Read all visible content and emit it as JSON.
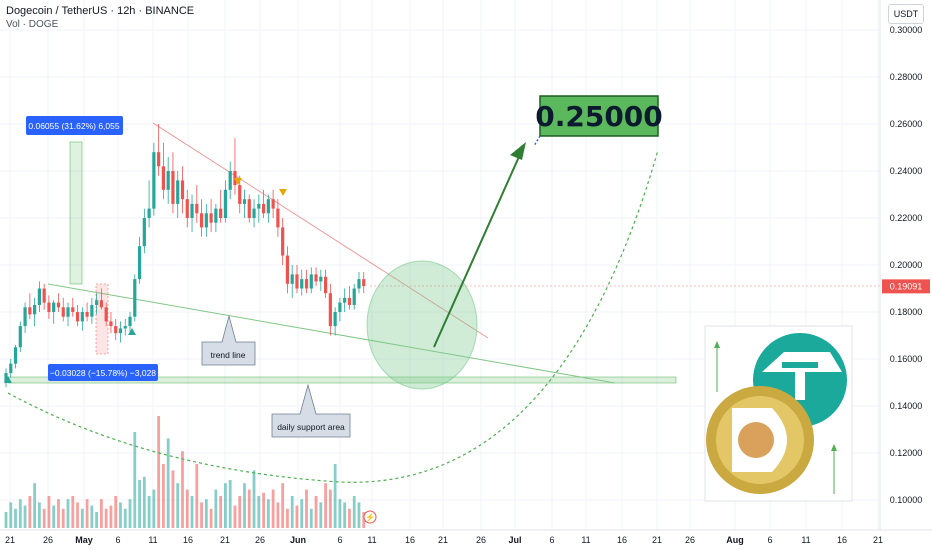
{
  "header": {
    "title": "Dogecoin / TetherUS · 12h · BINANCE",
    "volume_label": "Vol · DOGE",
    "currency": "USDT"
  },
  "chart_data": {
    "type": "candlestick",
    "symbol": "Dogecoin / TetherUS",
    "interval": "12h",
    "exchange": "BINANCE",
    "y_axis": {
      "ticks": [
        "0.30000",
        "0.28000",
        "0.26000",
        "0.24000",
        "0.22000",
        "0.20000",
        "0.18000",
        "0.16000",
        "0.14000",
        "0.12000",
        "0.10000"
      ],
      "range": [
        0.094,
        0.3
      ],
      "last_price_label": "0.19091"
    },
    "x_axis": {
      "ticks": [
        "21",
        "26",
        "May",
        "6",
        "11",
        "16",
        "21",
        "26",
        "Jun",
        "6",
        "11",
        "16",
        "21",
        "26",
        "Jul",
        "6",
        "11",
        "16",
        "21",
        "26",
        "Aug",
        "6",
        "11",
        "16",
        "21"
      ]
    },
    "series": [
      {
        "name": "Dogecoin / TetherUS",
        "ohlc": [
          [
            0.15,
            0.156,
            0.148,
            0.154
          ],
          [
            0.154,
            0.16,
            0.152,
            0.158
          ],
          [
            0.158,
            0.166,
            0.156,
            0.165
          ],
          [
            0.165,
            0.176,
            0.163,
            0.174
          ],
          [
            0.174,
            0.184,
            0.171,
            0.182
          ],
          [
            0.182,
            0.188,
            0.177,
            0.179
          ],
          [
            0.179,
            0.186,
            0.174,
            0.183
          ],
          [
            0.183,
            0.193,
            0.18,
            0.19
          ],
          [
            0.19,
            0.192,
            0.181,
            0.184
          ],
          [
            0.184,
            0.187,
            0.177,
            0.18
          ],
          [
            0.18,
            0.185,
            0.175,
            0.184
          ],
          [
            0.184,
            0.188,
            0.18,
            0.182
          ],
          [
            0.182,
            0.186,
            0.176,
            0.178
          ],
          [
            0.178,
            0.184,
            0.174,
            0.182
          ],
          [
            0.182,
            0.186,
            0.178,
            0.18
          ],
          [
            0.18,
            0.183,
            0.174,
            0.176
          ],
          [
            0.176,
            0.182,
            0.172,
            0.18
          ],
          [
            0.18,
            0.184,
            0.176,
            0.178
          ],
          [
            0.178,
            0.186,
            0.175,
            0.183
          ],
          [
            0.183,
            0.188,
            0.179,
            0.185
          ],
          [
            0.185,
            0.19,
            0.181,
            0.182
          ],
          [
            0.182,
            0.184,
            0.174,
            0.176
          ],
          [
            0.176,
            0.18,
            0.171,
            0.174
          ],
          [
            0.174,
            0.177,
            0.168,
            0.171
          ],
          [
            0.171,
            0.176,
            0.167,
            0.173
          ],
          [
            0.173,
            0.177,
            0.17,
            0.174
          ],
          [
            0.174,
            0.18,
            0.171,
            0.178
          ],
          [
            0.178,
            0.196,
            0.176,
            0.194
          ],
          [
            0.194,
            0.212,
            0.192,
            0.208
          ],
          [
            0.208,
            0.224,
            0.205,
            0.22
          ],
          [
            0.22,
            0.236,
            0.216,
            0.224
          ],
          [
            0.224,
            0.252,
            0.221,
            0.248
          ],
          [
            0.248,
            0.26,
            0.238,
            0.242
          ],
          [
            0.242,
            0.252,
            0.228,
            0.232
          ],
          [
            0.232,
            0.246,
            0.226,
            0.24
          ],
          [
            0.24,
            0.248,
            0.222,
            0.226
          ],
          [
            0.226,
            0.24,
            0.22,
            0.236
          ],
          [
            0.236,
            0.242,
            0.222,
            0.228
          ],
          [
            0.228,
            0.232,
            0.216,
            0.22
          ],
          [
            0.22,
            0.23,
            0.214,
            0.226
          ],
          [
            0.226,
            0.234,
            0.218,
            0.222
          ],
          [
            0.222,
            0.228,
            0.212,
            0.216
          ],
          [
            0.216,
            0.226,
            0.212,
            0.222
          ],
          [
            0.222,
            0.228,
            0.214,
            0.218
          ],
          [
            0.218,
            0.226,
            0.214,
            0.224
          ],
          [
            0.224,
            0.232,
            0.218,
            0.22
          ],
          [
            0.22,
            0.236,
            0.218,
            0.232
          ],
          [
            0.232,
            0.244,
            0.228,
            0.24
          ],
          [
            0.24,
            0.254,
            0.23,
            0.234
          ],
          [
            0.234,
            0.238,
            0.222,
            0.226
          ],
          [
            0.226,
            0.232,
            0.22,
            0.228
          ],
          [
            0.228,
            0.23,
            0.218,
            0.22
          ],
          [
            0.22,
            0.228,
            0.216,
            0.224
          ],
          [
            0.224,
            0.23,
            0.218,
            0.226
          ],
          [
            0.226,
            0.232,
            0.22,
            0.222
          ],
          [
            0.222,
            0.23,
            0.218,
            0.228
          ],
          [
            0.228,
            0.232,
            0.22,
            0.224
          ],
          [
            0.224,
            0.228,
            0.212,
            0.216
          ],
          [
            0.216,
            0.22,
            0.2,
            0.204
          ],
          [
            0.204,
            0.208,
            0.188,
            0.192
          ],
          [
            0.192,
            0.2,
            0.186,
            0.196
          ],
          [
            0.196,
            0.2,
            0.188,
            0.19
          ],
          [
            0.19,
            0.198,
            0.187,
            0.194
          ],
          [
            0.194,
            0.198,
            0.188,
            0.19
          ],
          [
            0.19,
            0.199,
            0.188,
            0.196
          ],
          [
            0.196,
            0.199,
            0.191,
            0.193
          ],
          [
            0.193,
            0.198,
            0.189,
            0.195
          ],
          [
            0.195,
            0.198,
            0.186,
            0.188
          ],
          [
            0.188,
            0.192,
            0.17,
            0.174
          ],
          [
            0.174,
            0.182,
            0.17,
            0.18
          ],
          [
            0.18,
            0.186,
            0.176,
            0.184
          ],
          [
            0.184,
            0.19,
            0.18,
            0.186
          ],
          [
            0.186,
            0.191,
            0.181,
            0.183
          ],
          [
            0.183,
            0.192,
            0.181,
            0.19
          ],
          [
            0.19,
            0.197,
            0.188,
            0.194
          ],
          [
            0.194,
            0.197,
            0.188,
            0.191
          ]
        ]
      }
    ],
    "volume": [
      5,
      8,
      6,
      9,
      7,
      10,
      14,
      8,
      6,
      10,
      7,
      9,
      6,
      9,
      10,
      8,
      6,
      9,
      7,
      5,
      9,
      6,
      7,
      10,
      8,
      6,
      9,
      30,
      15,
      16,
      10,
      12,
      35,
      20,
      28,
      18,
      14,
      24,
      12,
      10,
      20,
      8,
      9,
      6,
      12,
      10,
      14,
      15,
      7,
      10,
      14,
      12,
      18,
      10,
      11,
      9,
      12,
      8,
      14,
      6,
      10,
      7,
      9,
      12,
      6,
      10,
      8,
      14,
      12,
      20,
      9,
      8,
      6,
      10,
      8,
      5
    ],
    "annotations": {
      "target_label": "0.25000",
      "measure_up": "0.06055 (31.62%) 6,055",
      "measure_down": "−0.03028 (−15.78%) −3,028",
      "trend_line_label": "trend line",
      "support_label": "daily support area"
    },
    "grid": true
  }
}
